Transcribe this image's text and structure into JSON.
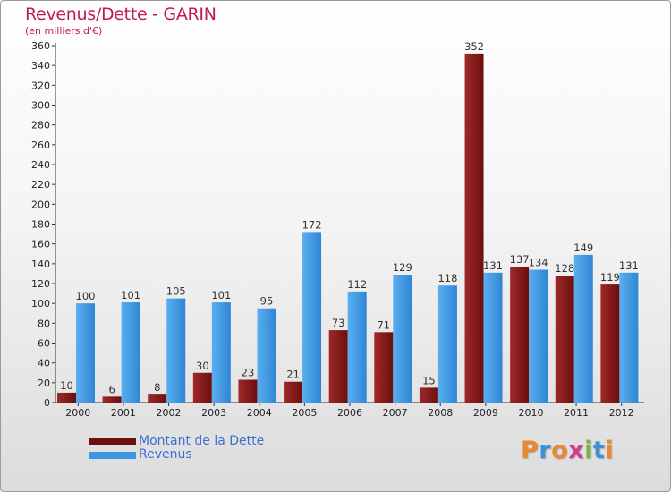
{
  "title": "Revenus/Dette - GARIN",
  "subtitle": "(en milliers d'€)",
  "chart_data": {
    "type": "bar",
    "categories": [
      "2000",
      "2001",
      "2002",
      "2003",
      "2004",
      "2005",
      "2006",
      "2007",
      "2008",
      "2009",
      "2010",
      "2011",
      "2012"
    ],
    "series": [
      {
        "name": "Montant de la Dette",
        "color": "#8b1a1a",
        "values": [
          10,
          6,
          8,
          30,
          23,
          21,
          73,
          71,
          15,
          352,
          137,
          128,
          119
        ]
      },
      {
        "name": "Revenus",
        "color": "#3d97e0",
        "values": [
          100,
          101,
          105,
          101,
          95,
          172,
          112,
          129,
          118,
          131,
          134,
          149,
          131
        ]
      }
    ],
    "ylim": [
      0,
      360
    ],
    "yticks": [
      0,
      20,
      40,
      60,
      80,
      100,
      120,
      140,
      160,
      180,
      200,
      220,
      240,
      260,
      280,
      300,
      320,
      340,
      360
    ],
    "grid": false,
    "legend_position": "bottom-left"
  },
  "legend": {
    "items": [
      {
        "label": "Montant de la Dette",
        "color": "#8b1a1a"
      },
      {
        "label": "Revenus",
        "color": "#3d97e0"
      }
    ]
  },
  "logo": {
    "text": "Proxiti"
  }
}
